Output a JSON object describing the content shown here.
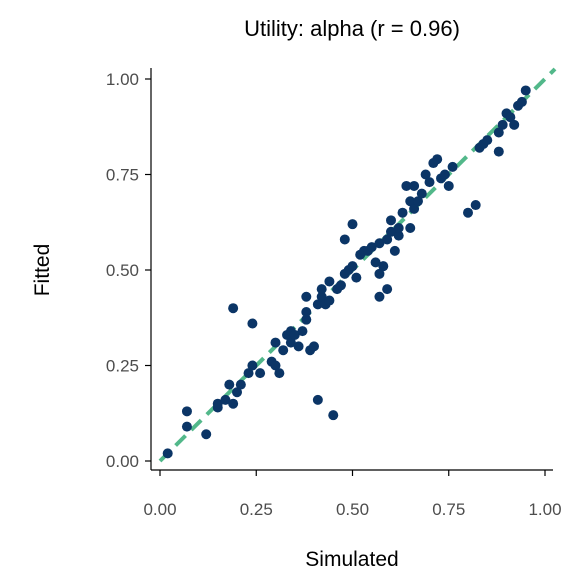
{
  "chart_data": {
    "type": "scatter",
    "title": "Utility: alpha (r = 0.96)",
    "xlabel": "Simulated",
    "ylabel": "Fitted",
    "xlim": [
      0,
      1
    ],
    "ylim": [
      0,
      1
    ],
    "xticks": [
      "0.00",
      "0.25",
      "0.50",
      "0.75",
      "1.00"
    ],
    "yticks": [
      "0.00",
      "0.25",
      "0.50",
      "0.75",
      "1.00"
    ],
    "grid": false,
    "point_color": "#0b3566",
    "reference_line": {
      "style": "dashed",
      "color": "#52b88a",
      "from": [
        0,
        0
      ],
      "to": [
        1,
        1
      ]
    },
    "points": [
      {
        "x": 0.02,
        "y": 0.02
      },
      {
        "x": 0.07,
        "y": 0.13
      },
      {
        "x": 0.07,
        "y": 0.09
      },
      {
        "x": 0.12,
        "y": 0.07
      },
      {
        "x": 0.15,
        "y": 0.14
      },
      {
        "x": 0.15,
        "y": 0.15
      },
      {
        "x": 0.17,
        "y": 0.16
      },
      {
        "x": 0.18,
        "y": 0.2
      },
      {
        "x": 0.19,
        "y": 0.15
      },
      {
        "x": 0.19,
        "y": 0.4
      },
      {
        "x": 0.2,
        "y": 0.18
      },
      {
        "x": 0.21,
        "y": 0.2
      },
      {
        "x": 0.23,
        "y": 0.23
      },
      {
        "x": 0.24,
        "y": 0.25
      },
      {
        "x": 0.24,
        "y": 0.36
      },
      {
        "x": 0.26,
        "y": 0.23
      },
      {
        "x": 0.29,
        "y": 0.26
      },
      {
        "x": 0.3,
        "y": 0.25
      },
      {
        "x": 0.3,
        "y": 0.31
      },
      {
        "x": 0.31,
        "y": 0.23
      },
      {
        "x": 0.32,
        "y": 0.29
      },
      {
        "x": 0.33,
        "y": 0.33
      },
      {
        "x": 0.34,
        "y": 0.31
      },
      {
        "x": 0.34,
        "y": 0.34
      },
      {
        "x": 0.35,
        "y": 0.33
      },
      {
        "x": 0.36,
        "y": 0.3
      },
      {
        "x": 0.37,
        "y": 0.34
      },
      {
        "x": 0.38,
        "y": 0.37
      },
      {
        "x": 0.38,
        "y": 0.39
      },
      {
        "x": 0.38,
        "y": 0.43
      },
      {
        "x": 0.39,
        "y": 0.29
      },
      {
        "x": 0.4,
        "y": 0.3
      },
      {
        "x": 0.41,
        "y": 0.16
      },
      {
        "x": 0.41,
        "y": 0.41
      },
      {
        "x": 0.42,
        "y": 0.43
      },
      {
        "x": 0.42,
        "y": 0.45
      },
      {
        "x": 0.43,
        "y": 0.41
      },
      {
        "x": 0.44,
        "y": 0.42
      },
      {
        "x": 0.44,
        "y": 0.47
      },
      {
        "x": 0.45,
        "y": 0.12
      },
      {
        "x": 0.46,
        "y": 0.45
      },
      {
        "x": 0.47,
        "y": 0.46
      },
      {
        "x": 0.48,
        "y": 0.49
      },
      {
        "x": 0.48,
        "y": 0.58
      },
      {
        "x": 0.49,
        "y": 0.5
      },
      {
        "x": 0.5,
        "y": 0.51
      },
      {
        "x": 0.5,
        "y": 0.62
      },
      {
        "x": 0.51,
        "y": 0.48
      },
      {
        "x": 0.52,
        "y": 0.54
      },
      {
        "x": 0.53,
        "y": 0.55
      },
      {
        "x": 0.54,
        "y": 0.55
      },
      {
        "x": 0.55,
        "y": 0.56
      },
      {
        "x": 0.56,
        "y": 0.52
      },
      {
        "x": 0.57,
        "y": 0.43
      },
      {
        "x": 0.57,
        "y": 0.57
      },
      {
        "x": 0.57,
        "y": 0.49
      },
      {
        "x": 0.58,
        "y": 0.51
      },
      {
        "x": 0.59,
        "y": 0.45
      },
      {
        "x": 0.59,
        "y": 0.58
      },
      {
        "x": 0.6,
        "y": 0.6
      },
      {
        "x": 0.6,
        "y": 0.63
      },
      {
        "x": 0.61,
        "y": 0.55
      },
      {
        "x": 0.62,
        "y": 0.59
      },
      {
        "x": 0.62,
        "y": 0.61
      },
      {
        "x": 0.63,
        "y": 0.65
      },
      {
        "x": 0.64,
        "y": 0.72
      },
      {
        "x": 0.65,
        "y": 0.61
      },
      {
        "x": 0.65,
        "y": 0.68
      },
      {
        "x": 0.66,
        "y": 0.72
      },
      {
        "x": 0.66,
        "y": 0.66
      },
      {
        "x": 0.67,
        "y": 0.68
      },
      {
        "x": 0.68,
        "y": 0.7
      },
      {
        "x": 0.69,
        "y": 0.75
      },
      {
        "x": 0.7,
        "y": 0.73
      },
      {
        "x": 0.71,
        "y": 0.78
      },
      {
        "x": 0.72,
        "y": 0.79
      },
      {
        "x": 0.73,
        "y": 0.74
      },
      {
        "x": 0.74,
        "y": 0.75
      },
      {
        "x": 0.75,
        "y": 0.72
      },
      {
        "x": 0.76,
        "y": 0.77
      },
      {
        "x": 0.8,
        "y": 0.65
      },
      {
        "x": 0.82,
        "y": 0.67
      },
      {
        "x": 0.83,
        "y": 0.82
      },
      {
        "x": 0.84,
        "y": 0.83
      },
      {
        "x": 0.85,
        "y": 0.84
      },
      {
        "x": 0.88,
        "y": 0.81
      },
      {
        "x": 0.88,
        "y": 0.86
      },
      {
        "x": 0.89,
        "y": 0.88
      },
      {
        "x": 0.9,
        "y": 0.91
      },
      {
        "x": 0.91,
        "y": 0.9
      },
      {
        "x": 0.92,
        "y": 0.88
      },
      {
        "x": 0.93,
        "y": 0.93
      },
      {
        "x": 0.94,
        "y": 0.94
      },
      {
        "x": 0.95,
        "y": 0.97
      }
    ]
  }
}
